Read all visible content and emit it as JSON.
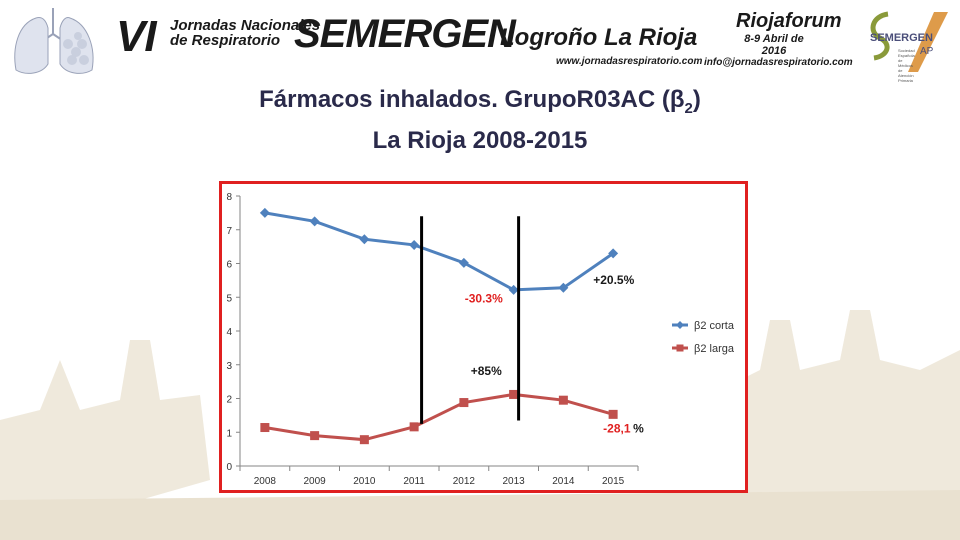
{
  "banner": {
    "edition": "VI",
    "jornadas_line1": "Jornadas Nacionales",
    "jornadas_line2": "de Respiratorio",
    "org": "SEMERGEN",
    "city": "Logroño La Rioja",
    "website": "www.jornadasrespiratorio.com",
    "venue": "Riojaforum",
    "dates": "8-9 Abril de 2016",
    "email": "info@jornadasrespiratorio.com",
    "logo_text": "SEMERGEN",
    "logo_sub": "AP",
    "logo_small": "Sociedad Española de Médicos de Atención Primaria"
  },
  "title": {
    "line1_main": "Fármacos inhalados. GrupoR03AC (β",
    "line1_sub": "2",
    "line1_end": ")",
    "line2": "La Rioja 2008-2015"
  },
  "chart_data": {
    "type": "line",
    "categories": [
      "2008",
      "2009",
      "2010",
      "2011",
      "2012",
      "2013",
      "2014",
      "2015"
    ],
    "ylim": [
      0,
      8
    ],
    "yticks": [
      "0",
      "1",
      "2",
      "3",
      "4",
      "5",
      "6",
      "7",
      "8"
    ],
    "series": [
      {
        "name": "β2 corta",
        "color": "#4f81bd",
        "marker": "diamond",
        "values": [
          7.5,
          7.25,
          6.72,
          6.55,
          6.02,
          5.22,
          5.28,
          6.3
        ]
      },
      {
        "name": "β2 larga",
        "color": "#c0504d",
        "marker": "square",
        "values": [
          1.14,
          0.9,
          0.78,
          1.16,
          1.88,
          2.12,
          1.95,
          1.53
        ]
      }
    ],
    "annotations": [
      {
        "text": "-30.3%",
        "color": "#e02020"
      },
      {
        "text": "+20.5%",
        "color": "#1a1a1a"
      },
      {
        "text": "+85%",
        "color": "#1a1a1a"
      },
      {
        "text": "-28,1",
        "color": "#e02020"
      },
      {
        "text": "%",
        "color": "#1a1a1a"
      }
    ],
    "legend_position": "right",
    "xlabel": "",
    "ylabel": ""
  }
}
